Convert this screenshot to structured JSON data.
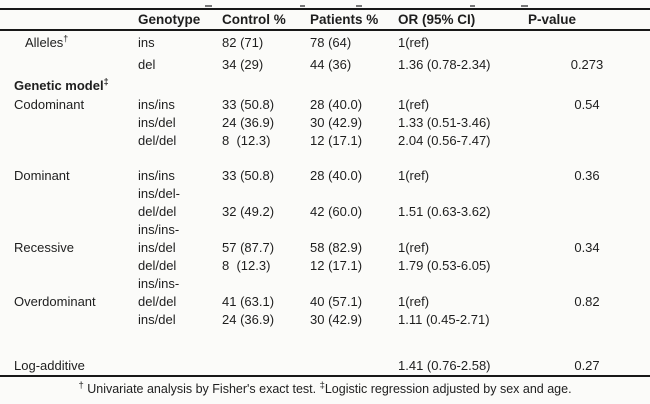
{
  "table": {
    "columns": [
      "",
      "Genotype",
      "Control %",
      "Patients %",
      "OR (95% CI)",
      "P-value"
    ],
    "rows": [
      {
        "type": "allele",
        "label": "Alleles",
        "label_sup": "†",
        "genotype": "ins",
        "control": "82 (71)",
        "patients": "78 (64)",
        "or": "1(ref)",
        "p": ""
      },
      {
        "type": "allele",
        "label": "",
        "genotype": "del",
        "control": "34 (29)",
        "patients": "44 (36)",
        "or": "1.36 (0.78-2.34)",
        "p": "0.273"
      },
      {
        "type": "section",
        "label": "Genetic model",
        "label_sup": "‡",
        "genotype": "",
        "control": "",
        "patients": "",
        "or": "",
        "p": ""
      },
      {
        "type": "model",
        "label": "Codominant",
        "genotype": "ins/ins",
        "control": "33 (50.8)",
        "patients": "28 (40.0)",
        "or": "1(ref)",
        "p": "0.54"
      },
      {
        "type": "model",
        "label": "",
        "genotype": "ins/del",
        "control": "24 (36.9)",
        "patients": "30 (42.9)",
        "or": "1.33 (0.51-3.46)",
        "p": ""
      },
      {
        "type": "model",
        "label": "",
        "genotype": "del/del",
        "control": "8  (12.3)",
        "patients": "12 (17.1)",
        "or": "2.04 (0.56-7.47)",
        "p": ""
      },
      {
        "type": "model",
        "label": "Dominant",
        "genotype": "ins/ins",
        "control": "33 (50.8)",
        "patients": "28 (40.0)",
        "or": "1(ref)",
        "p": "0.36"
      },
      {
        "type": "model",
        "label": "",
        "genotype": "ins/del-",
        "control": "",
        "patients": "",
        "or": "",
        "p": ""
      },
      {
        "type": "model",
        "label": "",
        "genotype": "del/del",
        "control": "32 (49.2)",
        "patients": "42 (60.0)",
        "or": "1.51 (0.63-3.62)",
        "p": ""
      },
      {
        "type": "model",
        "label": "",
        "genotype": "ins/ins-",
        "control": "",
        "patients": "",
        "or": "",
        "p": ""
      },
      {
        "type": "model",
        "label": "Recessive",
        "genotype": "ins/del",
        "control": "57 (87.7)",
        "patients": "58 (82.9)",
        "or": "1(ref)",
        "p": "0.34"
      },
      {
        "type": "model",
        "label": "",
        "genotype": "del/del",
        "control": "8  (12.3)",
        "patients": "12 (17.1)",
        "or": "1.79 (0.53-6.05)",
        "p": ""
      },
      {
        "type": "model",
        "label": "",
        "genotype": "ins/ins-",
        "control": "",
        "patients": "",
        "or": "",
        "p": ""
      },
      {
        "type": "model",
        "label": "Overdominant",
        "genotype": "del/del",
        "control": "41 (63.1)",
        "patients": "40 (57.1)",
        "or": "1(ref)",
        "p": "0.82"
      },
      {
        "type": "model",
        "label": "",
        "genotype": "ins/del",
        "control": "24 (36.9)",
        "patients": "30 (42.9)",
        "or": "1.11 (0.45-2.71)",
        "p": ""
      },
      {
        "type": "end",
        "label": "Log-additive",
        "genotype": "",
        "control": "",
        "patients": "",
        "or": "1.41 (0.76-2.58)",
        "p": "0.27"
      }
    ],
    "footnote": {
      "sup1": "†",
      "text1": " Univariate analysis by Fisher's exact test. ",
      "sup2": "‡",
      "text2": "Logistic regression adjusted by sex and age."
    }
  }
}
